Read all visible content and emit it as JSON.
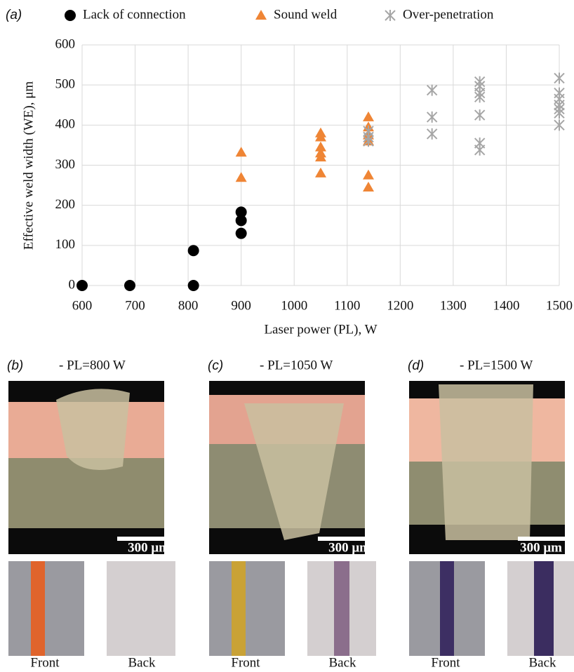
{
  "chart_data": {
    "type": "scatter",
    "title": "(a)",
    "xlabel": "Laser power (PL), W",
    "ylabel": "Effective weld width (WE), μm",
    "xlim": [
      600,
      1500
    ],
    "xticks": [
      600,
      700,
      800,
      900,
      1000,
      1100,
      1200,
      1300,
      1400,
      1500
    ],
    "ylim": [
      0,
      600
    ],
    "yticks": [
      0,
      100,
      200,
      300,
      400,
      500,
      600
    ],
    "grid": true,
    "series": [
      {
        "name": "Lack of connection",
        "marker": "circle",
        "color": "#000000",
        "x": [
          600,
          690,
          810,
          810,
          900,
          900,
          900
        ],
        "values": [
          0,
          0,
          0,
          87,
          183,
          162,
          130
        ]
      },
      {
        "name": "Sound weld",
        "marker": "triangle",
        "color": "#ef8535",
        "x": [
          900,
          900,
          1050,
          1050,
          1050,
          1050,
          1050,
          1050,
          1140,
          1140,
          1140,
          1140,
          1140,
          1140
        ],
        "values": [
          332,
          269,
          380,
          370,
          345,
          330,
          320,
          280,
          420,
          395,
          375,
          360,
          275,
          245
        ]
      },
      {
        "name": "Over-penetration",
        "marker": "asterisk",
        "color": "#a6a6a6",
        "x": [
          1140,
          1140,
          1140,
          1260,
          1260,
          1260,
          1350,
          1350,
          1350,
          1350,
          1350,
          1350,
          1350,
          1500,
          1500,
          1500,
          1500,
          1500,
          1500,
          1500
        ],
        "values": [
          385,
          370,
          360,
          487,
          420,
          378,
          508,
          497,
          480,
          470,
          425,
          355,
          338,
          517,
          480,
          465,
          450,
          440,
          430,
          400
        ]
      }
    ]
  },
  "panels": [
    {
      "label": "(b)",
      "title": "- PL=800 W",
      "scale_bar": "300 μm",
      "photos": [
        "Front",
        "Back"
      ]
    },
    {
      "label": "(c)",
      "title": "- PL=1050 W",
      "scale_bar": "300 μm",
      "photos": [
        "Front",
        "Back"
      ]
    },
    {
      "label": "(d)",
      "title": "- PL=1500 W",
      "scale_bar": "300 μm",
      "photos": [
        "Front",
        "Back"
      ]
    }
  ]
}
